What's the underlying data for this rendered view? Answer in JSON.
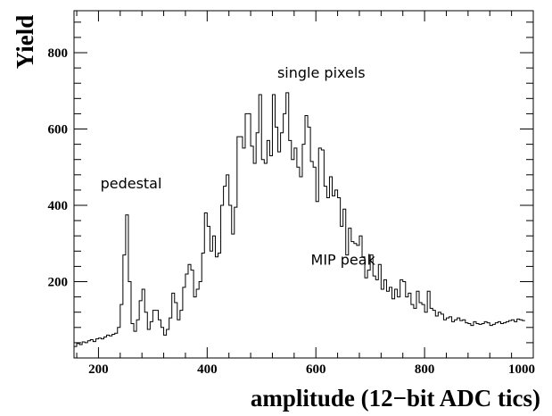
{
  "chart_data": {
    "type": "histogram",
    "xlabel": "amplitude (12−bit ADC tics)",
    "ylabel": "Yield",
    "xlim": [
      155,
      1000
    ],
    "ylim": [
      0,
      910
    ],
    "x_ticks": [
      200,
      400,
      600,
      800,
      1000
    ],
    "y_ticks": [
      200,
      400,
      600,
      800
    ],
    "x_tick_labels": [
      "200",
      "400",
      "600",
      "800",
      "1000"
    ],
    "y_tick_labels": [
      "200",
      "400",
      "600",
      "800"
    ],
    "grid": false,
    "bin_width": 5,
    "bin_start": 155,
    "values": [
      30,
      38,
      35,
      42,
      40,
      45,
      48,
      43,
      50,
      52,
      50,
      55,
      60,
      58,
      62,
      65,
      80,
      140,
      270,
      375,
      200,
      90,
      70,
      100,
      150,
      180,
      120,
      75,
      95,
      125,
      125,
      100,
      80,
      60,
      75,
      105,
      170,
      145,
      100,
      125,
      185,
      220,
      245,
      230,
      160,
      180,
      200,
      275,
      380,
      345,
      280,
      320,
      265,
      275,
      400,
      450,
      480,
      400,
      325,
      395,
      580,
      580,
      550,
      640,
      640,
      555,
      510,
      590,
      690,
      520,
      510,
      570,
      530,
      690,
      605,
      540,
      590,
      640,
      695,
      570,
      520,
      550,
      500,
      475,
      560,
      635,
      605,
      515,
      500,
      410,
      550,
      545,
      450,
      420,
      475,
      425,
      440,
      420,
      345,
      390,
      270,
      340,
      305,
      300,
      295,
      320,
      265,
      210,
      230,
      270,
      215,
      205,
      245,
      180,
      205,
      175,
      185,
      155,
      180,
      160,
      205,
      200,
      160,
      170,
      140,
      130,
      175,
      145,
      140,
      120,
      175,
      130,
      125,
      110,
      120,
      115,
      100,
      105,
      108,
      95,
      100,
      105,
      98,
      100,
      92,
      90,
      85,
      95,
      90,
      88,
      90,
      95,
      92,
      85,
      88,
      92,
      95,
      90,
      92,
      95,
      98,
      100,
      95,
      102,
      100,
      98
    ],
    "annotations": [
      {
        "text": "single pixels",
        "x": 610,
        "y": 735
      },
      {
        "text": "pedestal",
        "x": 260,
        "y": 445
      },
      {
        "text": "MIP peak",
        "x": 650,
        "y": 245
      }
    ]
  }
}
